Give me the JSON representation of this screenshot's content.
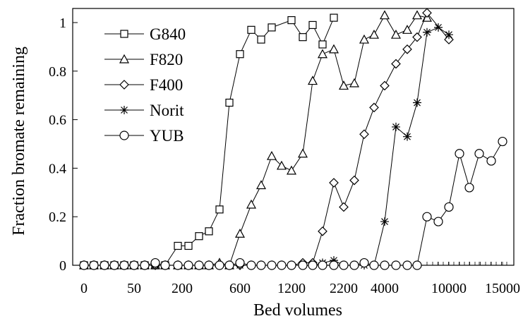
{
  "chart_data": {
    "type": "line",
    "title": "",
    "xlabel": "Bed volumes",
    "ylabel": "Fraction bromate remaining",
    "ylim": [
      0,
      1.05
    ],
    "y_ticks": [
      "0",
      "0.2",
      "0.4",
      "0.6",
      "0.8",
      "1"
    ],
    "x_tick_labels": [
      "0",
      "50",
      "200",
      "600",
      "1200",
      "2200",
      "4000",
      "10000",
      "15000"
    ],
    "x_scale": "categorical, non-uniform spacing",
    "grid": false,
    "legend_position": "top-left",
    "series": [
      {
        "name": "G840",
        "marker": "square",
        "values": [
          {
            "x": 0,
            "y": 0.0
          },
          {
            "x": 10,
            "y": 0.0
          },
          {
            "x": 20,
            "y": 0.0
          },
          {
            "x": 30,
            "y": 0.0
          },
          {
            "x": 40,
            "y": 0.0
          },
          {
            "x": 50,
            "y": 0.0
          },
          {
            "x": 60,
            "y": 0.0
          },
          {
            "x": 70,
            "y": 0.0
          },
          {
            "x": 80,
            "y": 0.0
          },
          {
            "x": 100,
            "y": 0.08
          },
          {
            "x": 200,
            "y": 0.08
          },
          {
            "x": 250,
            "y": 0.12
          },
          {
            "x": 300,
            "y": 0.14
          },
          {
            "x": 400,
            "y": 0.23
          },
          {
            "x": 500,
            "y": 0.67
          },
          {
            "x": 600,
            "y": 0.87
          },
          {
            "x": 700,
            "y": 0.97
          },
          {
            "x": 800,
            "y": 0.93
          },
          {
            "x": 1000,
            "y": 0.98
          },
          {
            "x": 1200,
            "y": 1.01
          },
          {
            "x": 1400,
            "y": 0.94
          },
          {
            "x": 1600,
            "y": 0.99
          },
          {
            "x": 1800,
            "y": 0.91
          },
          {
            "x": 2000,
            "y": 1.02
          }
        ]
      },
      {
        "name": "F820",
        "marker": "triangle",
        "values": [
          {
            "x": 0,
            "y": 0.0
          },
          {
            "x": 10,
            "y": 0.0
          },
          {
            "x": 20,
            "y": 0.0
          },
          {
            "x": 30,
            "y": 0.0
          },
          {
            "x": 40,
            "y": 0.0
          },
          {
            "x": 50,
            "y": 0.0
          },
          {
            "x": 60,
            "y": 0.0
          },
          {
            "x": 70,
            "y": 0.0
          },
          {
            "x": 80,
            "y": 0.0
          },
          {
            "x": 100,
            "y": 0.0
          },
          {
            "x": 200,
            "y": 0.0
          },
          {
            "x": 250,
            "y": 0.0
          },
          {
            "x": 300,
            "y": 0.0
          },
          {
            "x": 400,
            "y": 0.01
          },
          {
            "x": 500,
            "y": 0.0
          },
          {
            "x": 600,
            "y": 0.13
          },
          {
            "x": 700,
            "y": 0.25
          },
          {
            "x": 800,
            "y": 0.33
          },
          {
            "x": 1000,
            "y": 0.45
          },
          {
            "x": 1100,
            "y": 0.41
          },
          {
            "x": 1200,
            "y": 0.39
          },
          {
            "x": 1400,
            "y": 0.46
          },
          {
            "x": 1600,
            "y": 0.76
          },
          {
            "x": 1800,
            "y": 0.87
          },
          {
            "x": 2000,
            "y": 0.89
          },
          {
            "x": 2200,
            "y": 0.74
          },
          {
            "x": 2600,
            "y": 0.75
          },
          {
            "x": 3000,
            "y": 0.93
          },
          {
            "x": 3300,
            "y": 0.95
          },
          {
            "x": 4000,
            "y": 1.03
          },
          {
            "x": 4500,
            "y": 0.95
          },
          {
            "x": 5000,
            "y": 0.97
          },
          {
            "x": 6000,
            "y": 1.03
          },
          {
            "x": 7000,
            "y": 1.02
          }
        ]
      },
      {
        "name": "F400",
        "marker": "diamond",
        "values": [
          {
            "x": 0,
            "y": 0.0
          },
          {
            "x": 10,
            "y": 0.0
          },
          {
            "x": 20,
            "y": 0.0
          },
          {
            "x": 30,
            "y": 0.0
          },
          {
            "x": 40,
            "y": 0.0
          },
          {
            "x": 50,
            "y": 0.0
          },
          {
            "x": 60,
            "y": 0.0
          },
          {
            "x": 70,
            "y": 0.0
          },
          {
            "x": 80,
            "y": 0.0
          },
          {
            "x": 100,
            "y": 0.0
          },
          {
            "x": 200,
            "y": 0.0
          },
          {
            "x": 250,
            "y": 0.0
          },
          {
            "x": 300,
            "y": 0.0
          },
          {
            "x": 400,
            "y": 0.0
          },
          {
            "x": 500,
            "y": 0.0
          },
          {
            "x": 600,
            "y": 0.0
          },
          {
            "x": 700,
            "y": 0.0
          },
          {
            "x": 800,
            "y": 0.0
          },
          {
            "x": 1000,
            "y": 0.0
          },
          {
            "x": 1100,
            "y": 0.0
          },
          {
            "x": 1200,
            "y": 0.0
          },
          {
            "x": 1400,
            "y": 0.01
          },
          {
            "x": 1600,
            "y": 0.01
          },
          {
            "x": 1800,
            "y": 0.14
          },
          {
            "x": 2000,
            "y": 0.34
          },
          {
            "x": 2200,
            "y": 0.24
          },
          {
            "x": 2600,
            "y": 0.35
          },
          {
            "x": 3000,
            "y": 0.54
          },
          {
            "x": 3300,
            "y": 0.65
          },
          {
            "x": 4000,
            "y": 0.74
          },
          {
            "x": 4500,
            "y": 0.83
          },
          {
            "x": 5000,
            "y": 0.89
          },
          {
            "x": 6000,
            "y": 0.94
          },
          {
            "x": 7000,
            "y": 1.04
          },
          {
            "x": 9000,
            "y": 0.93
          }
        ]
      },
      {
        "name": "Norit",
        "marker": "star",
        "values": [
          {
            "x": 0,
            "y": 0.0
          },
          {
            "x": 10,
            "y": 0.0
          },
          {
            "x": 20,
            "y": 0.0
          },
          {
            "x": 30,
            "y": 0.0
          },
          {
            "x": 40,
            "y": 0.0
          },
          {
            "x": 50,
            "y": 0.0
          },
          {
            "x": 60,
            "y": 0.0
          },
          {
            "x": 70,
            "y": 0.0
          },
          {
            "x": 80,
            "y": 0.0
          },
          {
            "x": 100,
            "y": 0.0
          },
          {
            "x": 200,
            "y": 0.0
          },
          {
            "x": 250,
            "y": 0.0
          },
          {
            "x": 300,
            "y": 0.0
          },
          {
            "x": 400,
            "y": 0.0
          },
          {
            "x": 500,
            "y": 0.0
          },
          {
            "x": 600,
            "y": 0.0
          },
          {
            "x": 700,
            "y": 0.0
          },
          {
            "x": 800,
            "y": 0.0
          },
          {
            "x": 1000,
            "y": 0.0
          },
          {
            "x": 1100,
            "y": 0.0
          },
          {
            "x": 1200,
            "y": 0.0
          },
          {
            "x": 1400,
            "y": 0.0
          },
          {
            "x": 1600,
            "y": 0.0
          },
          {
            "x": 1800,
            "y": 0.01
          },
          {
            "x": 2000,
            "y": 0.02
          },
          {
            "x": 2200,
            "y": 0.0
          },
          {
            "x": 2600,
            "y": 0.0
          },
          {
            "x": 3000,
            "y": 0.0
          },
          {
            "x": 3300,
            "y": 0.0
          },
          {
            "x": 4000,
            "y": 0.18
          },
          {
            "x": 4500,
            "y": 0.57
          },
          {
            "x": 5000,
            "y": 0.53
          },
          {
            "x": 6000,
            "y": 0.67
          },
          {
            "x": 7000,
            "y": 0.96
          },
          {
            "x": 8000,
            "y": 0.98
          },
          {
            "x": 10000,
            "y": 0.95
          }
        ]
      },
      {
        "name": "YUB",
        "marker": "circle",
        "values": [
          {
            "x": 0,
            "y": 0.0
          },
          {
            "x": 10,
            "y": 0.0
          },
          {
            "x": 20,
            "y": 0.0
          },
          {
            "x": 30,
            "y": 0.0
          },
          {
            "x": 40,
            "y": 0.0
          },
          {
            "x": 50,
            "y": 0.0
          },
          {
            "x": 60,
            "y": 0.0
          },
          {
            "x": 70,
            "y": 0.01
          },
          {
            "x": 80,
            "y": 0.0
          },
          {
            "x": 100,
            "y": 0.0
          },
          {
            "x": 200,
            "y": 0.0
          },
          {
            "x": 250,
            "y": 0.0
          },
          {
            "x": 300,
            "y": 0.0
          },
          {
            "x": 400,
            "y": 0.0
          },
          {
            "x": 500,
            "y": 0.0
          },
          {
            "x": 600,
            "y": 0.01
          },
          {
            "x": 700,
            "y": 0.0
          },
          {
            "x": 800,
            "y": 0.0
          },
          {
            "x": 1000,
            "y": 0.0
          },
          {
            "x": 1100,
            "y": 0.0
          },
          {
            "x": 1200,
            "y": 0.0
          },
          {
            "x": 1400,
            "y": 0.0
          },
          {
            "x": 1600,
            "y": 0.0
          },
          {
            "x": 1800,
            "y": 0.0
          },
          {
            "x": 2000,
            "y": 0.0
          },
          {
            "x": 2200,
            "y": 0.0
          },
          {
            "x": 2600,
            "y": 0.0
          },
          {
            "x": 3000,
            "y": 0.01
          },
          {
            "x": 3300,
            "y": 0.0
          },
          {
            "x": 4000,
            "y": 0.0
          },
          {
            "x": 4500,
            "y": 0.0
          },
          {
            "x": 5000,
            "y": 0.0
          },
          {
            "x": 6000,
            "y": 0.0
          },
          {
            "x": 7000,
            "y": 0.2
          },
          {
            "x": 8000,
            "y": 0.18
          },
          {
            "x": 10000,
            "y": 0.24
          },
          {
            "x": 11000,
            "y": 0.46
          },
          {
            "x": 12000,
            "y": 0.32
          },
          {
            "x": 13000,
            "y": 0.46
          },
          {
            "x": 14000,
            "y": 0.43
          },
          {
            "x": 15000,
            "y": 0.51
          }
        ]
      }
    ]
  }
}
